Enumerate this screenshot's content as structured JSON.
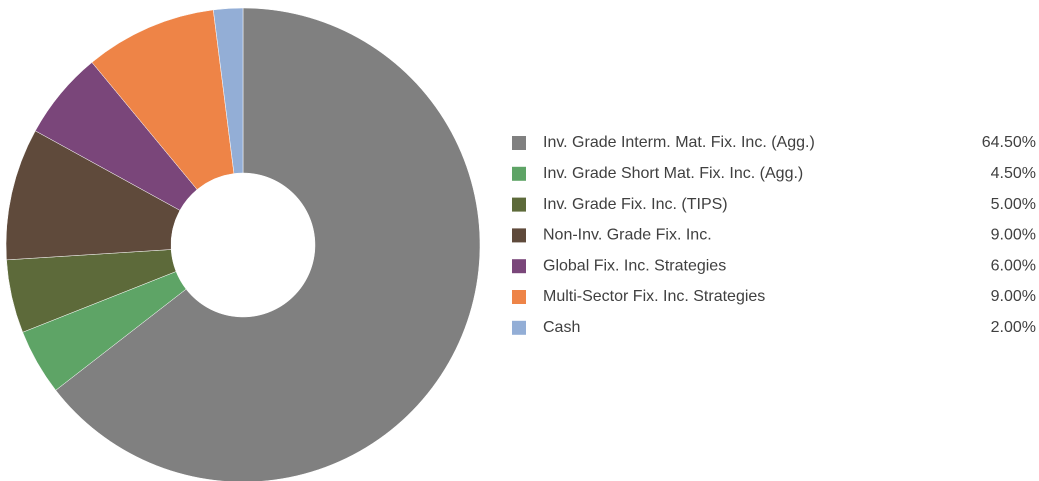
{
  "chart_data": {
    "type": "pie",
    "categories": [
      "Inv. Grade Interm. Mat. Fix. Inc. (Agg.)",
      "Inv. Grade Short Mat. Fix. Inc. (Agg.)",
      "Inv. Grade Fix. Inc. (TIPS)",
      "Non-Inv. Grade Fix. Inc.",
      "Global Fix. Inc. Strategies",
      "Multi-Sector Fix. Inc. Strategies",
      "Cash"
    ],
    "values": [
      64.5,
      4.5,
      5,
      9,
      6,
      9,
      2
    ],
    "value_labels": [
      "64.50%",
      "4.50%",
      "5.00%",
      "9.00%",
      "6.00%",
      "9.00%",
      "2.00%"
    ],
    "colors": [
      "#808080",
      "#5ea466",
      "#5d6a3a",
      "#5f4a3b",
      "#7a467a",
      "#ee8447",
      "#93aed6"
    ],
    "legend": "right"
  }
}
